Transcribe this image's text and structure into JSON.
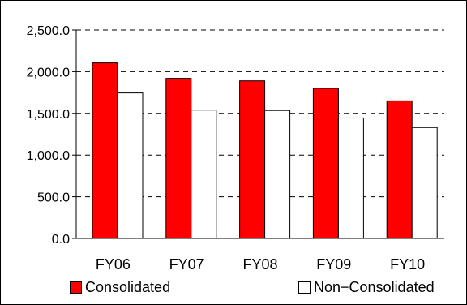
{
  "chart_data": {
    "type": "bar",
    "categories": [
      "FY06",
      "FY07",
      "FY08",
      "FY09",
      "FY10"
    ],
    "series": [
      {
        "name": "Consolidated",
        "values": [
          2105.0,
          1920.0,
          1890.0,
          1800.0,
          1650.0
        ],
        "color": "#ff0000"
      },
      {
        "name": "Non-Consolidated",
        "values": [
          1745.0,
          1540.0,
          1535.0,
          1445.0,
          1330.0
        ],
        "color": "#ffffff"
      }
    ],
    "yticks": [
      "0.0",
      "500.0",
      "1,000.0",
      "1,500.0",
      "2,000.0",
      "2,500.0"
    ],
    "ylim": [
      0,
      2500
    ],
    "grid": true,
    "legend_position": "bottom",
    "title": "",
    "xlabel": "",
    "ylabel": ""
  },
  "legend": {
    "consolidated_label": "Consolidated",
    "non_consolidated_label": "Non−Consolidated"
  }
}
